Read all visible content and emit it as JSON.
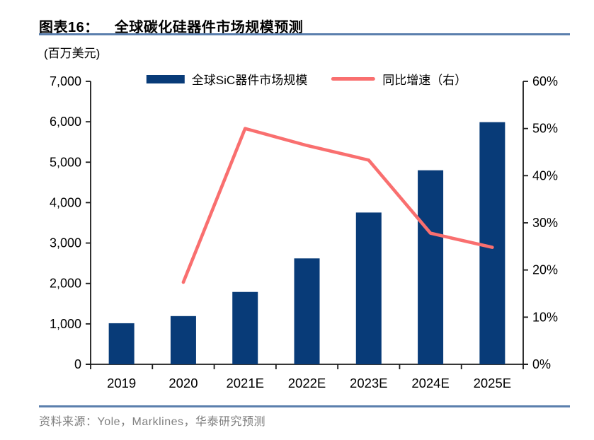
{
  "header": {
    "figure_label": "图表16：",
    "title": "全球碳化硅器件市场规模预测"
  },
  "unit_label": "(百万美元)",
  "legend": [
    {
      "label": "全球SiC器件市场规模",
      "swatch": "bar-swatch"
    },
    {
      "label": "同比增速（右）",
      "swatch": "line-swatch"
    }
  ],
  "footer": {
    "source": "资料来源：Yole，Marklines，华泰研究预测"
  },
  "colors": {
    "bar": "#083b78",
    "line": "#f96f6f",
    "rule": "#5b7fad",
    "axis": "#1a1a1a",
    "source_text": "#7f7f7f"
  },
  "chart_data": {
    "type": "bar",
    "title": "全球碳化硅器件市场规模预测",
    "categories": [
      "2019",
      "2020",
      "2021E",
      "2022E",
      "2023E",
      "2024E",
      "2025E"
    ],
    "series": [
      {
        "name": "全球SiC器件市场规模",
        "type": "bar",
        "axis": "left",
        "values": [
          1016,
          1193,
          1790,
          2620,
          3755,
          4800,
          5990
        ]
      },
      {
        "name": "同比增速（右）",
        "type": "line",
        "axis": "right",
        "values": [
          null,
          17.4,
          50.0,
          46.4,
          43.3,
          27.8,
          24.8
        ]
      }
    ],
    "left_axis": {
      "label": "(百万美元)",
      "min": 0,
      "max": 7000,
      "step": 1000,
      "tick_labels": [
        "0",
        "1,000",
        "2,000",
        "3,000",
        "4,000",
        "5,000",
        "6,000",
        "7,000"
      ]
    },
    "right_axis": {
      "label": "%",
      "min": 0,
      "max": 60,
      "step": 10,
      "tick_labels": [
        "0%",
        "10%",
        "20%",
        "30%",
        "40%",
        "50%",
        "60%"
      ]
    },
    "grid": false,
    "legend_position": "top"
  }
}
